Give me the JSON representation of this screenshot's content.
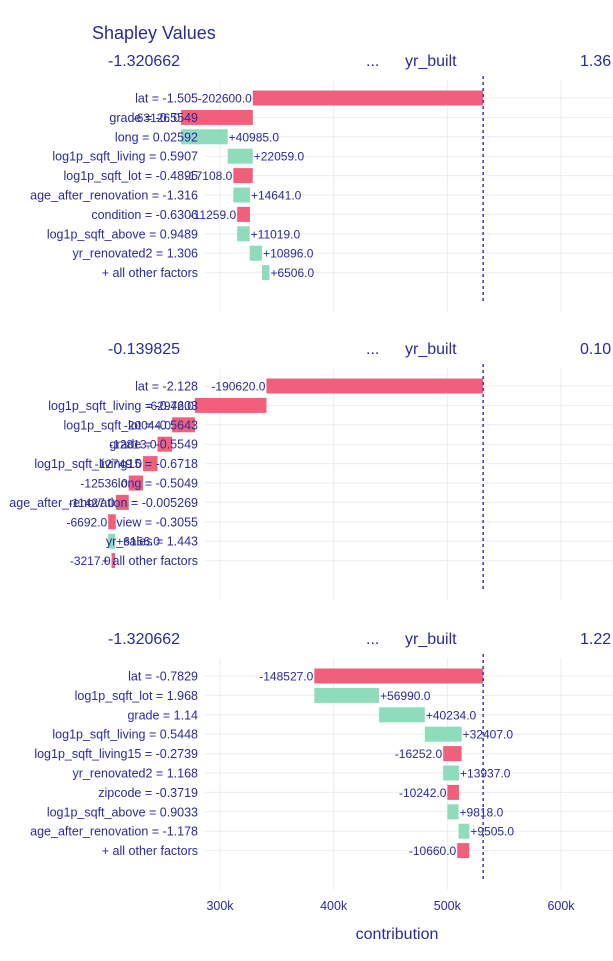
{
  "title": "Shapley Values",
  "colors": {
    "negative": "#f0607a",
    "positive": "#8fdcbd",
    "text": "#2a2a9e",
    "intercept_line": "#2d2daa"
  },
  "chart_data": [
    {
      "type": "bar",
      "header": {
        "left": "-1.320662",
        "dots": "...",
        "feature": "yr_built",
        "right": "1.36"
      },
      "categories": [
        "lat = -1.505",
        "grade = -0.5549",
        "long = 0.02592",
        "log1p_sqft_living = 0.5907",
        "log1p_sqft_lot = -0.4895",
        "age_after_renovation = -1.316",
        "condition = -0.6306",
        "log1p_sqft_above = 0.9489",
        "yr_renovated2 = 1.306",
        "+ all other factors"
      ],
      "values": [
        -202600,
        -63126,
        40985,
        22059,
        -17108,
        14641,
        -11259,
        11019,
        10896,
        6506
      ],
      "labels": [
        "-202600.0",
        "-63126.0",
        "+40985.0",
        "+22059.0",
        "-17108.0",
        "+14641.0",
        "-11259.0",
        "+11019.0",
        "+10896.0",
        "+6506.0"
      ]
    },
    {
      "type": "bar",
      "header": {
        "left": "-0.139825",
        "dots": "...",
        "feature": "yr_built",
        "right": "0.10"
      },
      "categories": [
        "lat = -2.128",
        "log1p_sqft_living = -0.4603",
        "log1p_sqft_lot = -0.5643",
        "grade = -0.5549",
        "log1p_sqft_living15 = -0.6718",
        "long = -0.5049",
        "age_after_renovation = -0.005269",
        "view = -0.3055",
        "yr_sales = 1.443",
        "+ all other factors"
      ],
      "values": [
        -190620,
        -62972,
        -20044,
        -12813,
        -12749,
        -12536,
        -11427,
        -6692,
        6156,
        -3217
      ],
      "labels": [
        "-190620.0",
        "-62972.0",
        "-20044.0",
        "-12813.0",
        "-12749.0",
        "-12536.0",
        "-11427.0",
        "-6692.0",
        "+6156.0",
        "-3217.0"
      ]
    },
    {
      "type": "bar",
      "header": {
        "left": "-1.320662",
        "dots": "...",
        "feature": "yr_built",
        "right": "1.22"
      },
      "categories": [
        "lat = -0.7829",
        "log1p_sqft_lot = 1.968",
        "grade = 1.14",
        "log1p_sqft_living = 0.5448",
        "log1p_sqft_living15 = -0.2739",
        "yr_renovated2 = 1.168",
        "zipcode = -0.3719",
        "log1p_sqft_above = 0.9033",
        "age_after_renovation = -1.178",
        "+ all other factors"
      ],
      "values": [
        -148527,
        56990,
        40234,
        32407,
        -16252,
        13937,
        -10242,
        9818,
        9505,
        -10660
      ],
      "labels": [
        "-148527.0",
        "+56990.0",
        "+40234.0",
        "+32407.0",
        "-16252.0",
        "+13937.0",
        "-10242.0",
        "+9818.0",
        "+9505.0",
        "-10660.0"
      ]
    }
  ],
  "intercept": 531500,
  "xaxis": {
    "title": "contribution",
    "range": [
      290000,
      610000
    ],
    "ticks": [
      300000,
      400000,
      500000,
      600000
    ],
    "tick_labels": [
      "300k",
      "400k",
      "500k",
      "600k"
    ],
    "grid": true
  }
}
